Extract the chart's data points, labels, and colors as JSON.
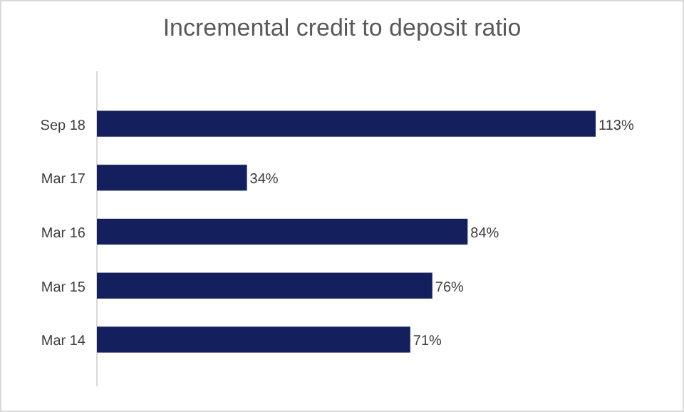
{
  "chart_data": {
    "type": "bar",
    "orientation": "horizontal",
    "title": "Incremental credit to deposit ratio",
    "categories": [
      "Sep 18",
      "Mar 17",
      "Mar 16",
      "Mar 15",
      "Mar 14"
    ],
    "values": [
      113,
      34,
      84,
      76,
      71
    ],
    "value_labels": [
      "113%",
      "34%",
      "84%",
      "76%",
      "71%"
    ],
    "color": "#14205e"
  }
}
